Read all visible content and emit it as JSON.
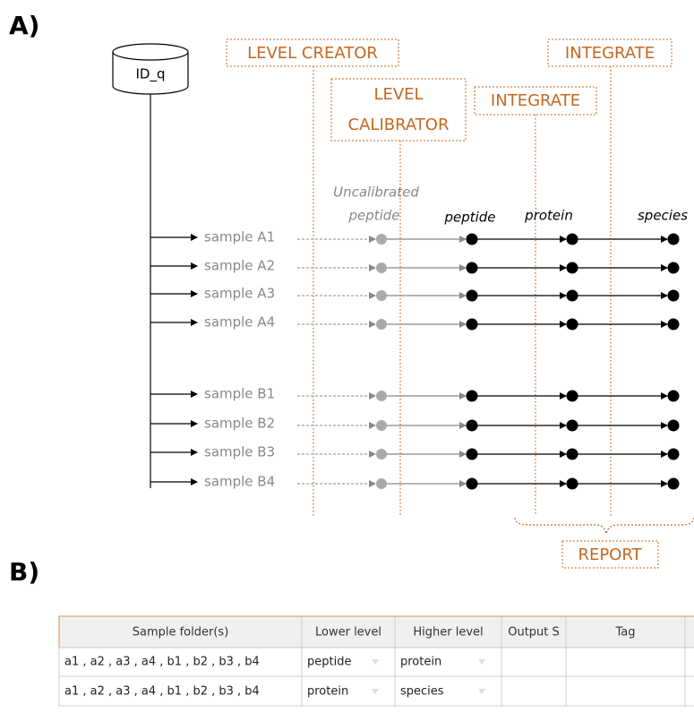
{
  "panel_a": {
    "label": "A)",
    "database": "ID_q",
    "modules": {
      "level_creator": "LEVEL CREATOR",
      "level_calibrator": [
        "LEVEL",
        "CALIBRATOR"
      ],
      "integrate_1": "INTEGRATE",
      "integrate_2": "INTEGRATE",
      "report": "REPORT"
    },
    "levels": {
      "uncalibrated": [
        "Uncalibrated",
        "peptide"
      ],
      "peptide": "peptide",
      "protein": "protein",
      "species": "species"
    },
    "samples": [
      "sample A1",
      "sample A2",
      "sample A3",
      "sample A4",
      "sample B1",
      "sample B2",
      "sample B3",
      "sample B4"
    ]
  },
  "panel_b": {
    "label": "B)",
    "table": {
      "headers": [
        "Sample folder(s)",
        "Lower level",
        "Higher level",
        "Output S",
        "Tag"
      ],
      "rows": [
        [
          "a1 , a2 , a3 , a4 , b1 , b2 , b3 , b4",
          "peptide",
          "protein"
        ],
        [
          "a1 , a2 , a3 , a4 , b1 , b2 , b3 , b4",
          "protein",
          "species"
        ]
      ]
    }
  }
}
